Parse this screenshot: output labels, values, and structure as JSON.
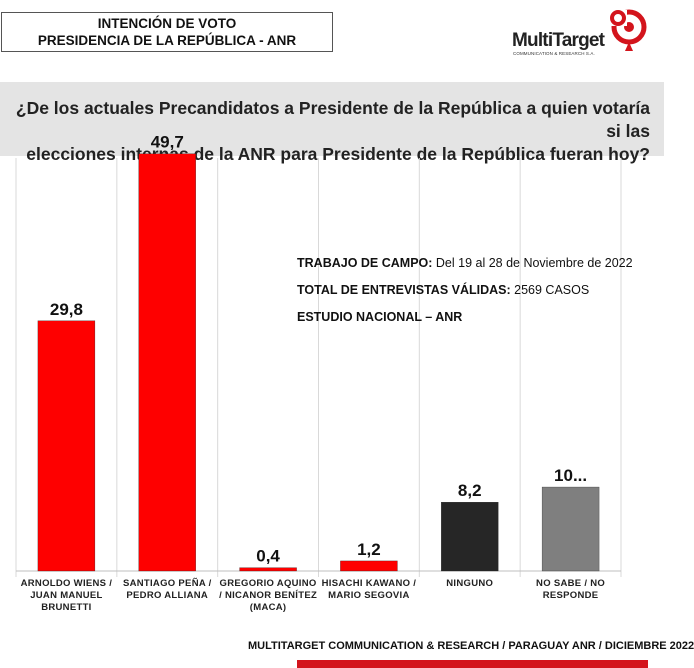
{
  "header": {
    "title_line1": "INTENCIÓN DE VOTO",
    "title_line2": "PRESIDENCIA DE LA REPÚBLICA - ANR"
  },
  "logo": {
    "name": "MultiTarget",
    "subtitle": "COMMUNICATION & RESEARCH S.A.",
    "icon": "target-pin-icon",
    "color": "#d3141c"
  },
  "question": {
    "line1": "¿De los actuales Precandidatos a Presidente de la República a quien votaría si las",
    "line2": "elecciones internas de la ANR para Presidente de la República fueran hoy?"
  },
  "info": {
    "fieldwork_label": "TRABAJO DE CAMPO:",
    "fieldwork_value": " Del 19 al 28 de Noviembre   de  2022",
    "interviews_label": "TOTAL DE ENTREVISTAS VÁLIDAS:",
    "interviews_value": " 2569 CASOS",
    "study_label": "ESTUDIO NACIONAL – ANR"
  },
  "footer": {
    "text": "MULTITARGET COMMUNICATION & RESEARCH / PARAGUAY ANR / DICIEMBRE  2022",
    "bar_color": "#d3141c"
  },
  "chart_data": {
    "type": "bar",
    "title": "",
    "xlabel": "",
    "ylabel": "",
    "ylim": [
      0,
      53
    ],
    "grid": false,
    "legend": "none",
    "categories": [
      [
        "ARNOLDO WIENS /",
        "JUAN MANUEL",
        "BRUNETTI"
      ],
      [
        "SANTIAGO PEÑA /",
        "PEDRO ALLIANA"
      ],
      [
        "GREGORIO AQUINO",
        "/ NICANOR BENÍTEZ",
        "(MACA)"
      ],
      [
        "HISACHI KAWANO /",
        "MARIO SEGOVIA"
      ],
      [
        "NINGUNO"
      ],
      [
        "NO SABE / NO",
        "RESPONDE"
      ]
    ],
    "values": [
      29.8,
      49.7,
      0.4,
      1.2,
      8.2,
      10
    ],
    "data_labels": [
      "29,8",
      "49,7",
      "0,4",
      "1,2",
      "8,2",
      "10..."
    ],
    "colors": [
      "#fe0000",
      "#fe0000",
      "#fe0000",
      "#fe0000",
      "#262626",
      "#7f7f7f"
    ]
  }
}
